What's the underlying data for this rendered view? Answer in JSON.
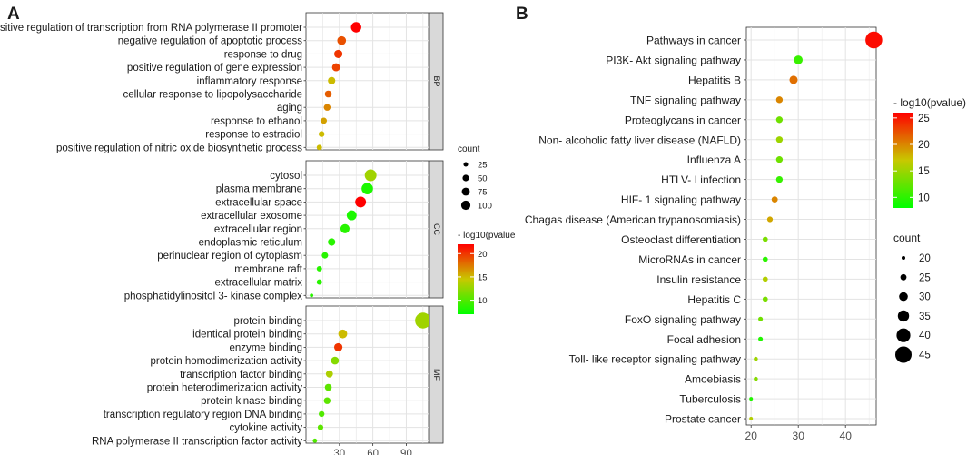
{
  "chart_data": [
    {
      "panel": "A",
      "type": "scatter",
      "subtype": "faceted bubble plot",
      "xlim": [
        0,
        110
      ],
      "xticks": [
        30,
        60,
        90
      ],
      "facets": [
        {
          "name": "BP",
          "terms": [
            {
              "label": "positive regulation of transcription from RNA polymerase II promoter",
              "count": 45,
              "log10p": 22
            },
            {
              "label": "negative regulation of apoptotic process",
              "count": 32,
              "log10p": 19
            },
            {
              "label": "response to drug",
              "count": 29,
              "log10p": 20
            },
            {
              "label": "positive regulation of gene expression",
              "count": 27,
              "log10p": 19.5
            },
            {
              "label": "inflammatory response",
              "count": 23,
              "log10p": 15
            },
            {
              "label": "cellular response to lipopolysaccharide",
              "count": 20,
              "log10p": 18.5
            },
            {
              "label": "aging",
              "count": 19,
              "log10p": 17
            },
            {
              "label": "response to ethanol",
              "count": 16,
              "log10p": 16
            },
            {
              "label": "response to estradiol",
              "count": 14,
              "log10p": 15
            },
            {
              "label": "positive regulation of nitric oxide biosynthetic process",
              "count": 12,
              "log10p": 15
            }
          ]
        },
        {
          "name": "CC",
          "terms": [
            {
              "label": "cytosol",
              "count": 58,
              "log10p": 13
            },
            {
              "label": "plasma membrane",
              "count": 55,
              "log10p": 8
            },
            {
              "label": "extracellular space",
              "count": 49,
              "log10p": 22
            },
            {
              "label": "extracellular exosome",
              "count": 41,
              "log10p": 8
            },
            {
              "label": "extracellular region",
              "count": 35,
              "log10p": 8.5
            },
            {
              "label": "endoplasmic reticulum",
              "count": 23,
              "log10p": 8.5
            },
            {
              "label": "perinuclear region of cytoplasm",
              "count": 17,
              "log10p": 8.5
            },
            {
              "label": "membrane raft",
              "count": 12,
              "log10p": 8.5
            },
            {
              "label": "extracellular matrix",
              "count": 12,
              "log10p": 8.5
            },
            {
              "label": "phosphatidylinositol 3- kinase complex",
              "count": 5,
              "log10p": 8.5
            }
          ]
        },
        {
          "name": "MF",
          "terms": [
            {
              "label": "protein binding",
              "count": 105,
              "log10p": 13
            },
            {
              "label": "identical protein binding",
              "count": 33,
              "log10p": 15
            },
            {
              "label": "enzyme binding",
              "count": 29,
              "log10p": 20
            },
            {
              "label": "protein homodimerization activity",
              "count": 26,
              "log10p": 12
            },
            {
              "label": "transcription factor binding",
              "count": 21,
              "log10p": 13.5
            },
            {
              "label": "protein heterodimerization activity",
              "count": 20,
              "log10p": 10.5
            },
            {
              "label": "protein kinase binding",
              "count": 19,
              "log10p": 10.5
            },
            {
              "label": "transcription regulatory region DNA binding",
              "count": 14,
              "log10p": 10
            },
            {
              "label": "cytokine activity",
              "count": 13,
              "log10p": 10.5
            },
            {
              "label": "RNA polymerase II transcription factor activity",
              "count": 8,
              "log10p": 10
            }
          ]
        }
      ],
      "legend_size": {
        "title": "count",
        "values": [
          25,
          50,
          75,
          100
        ]
      },
      "legend_color": {
        "title": "- log10(pvalue",
        "ticks": [
          10,
          15,
          20
        ],
        "range": [
          7,
          22
        ],
        "low_color": "#00ff00",
        "high_color": "#ff0000"
      }
    },
    {
      "panel": "B",
      "type": "scatter",
      "subtype": "bubble plot",
      "xlim": [
        19,
        46.5
      ],
      "xticks": [
        20,
        30,
        40
      ],
      "terms": [
        {
          "label": "Pathways in cancer",
          "x": 46,
          "count": 46,
          "log10p": 25.5
        },
        {
          "label": "PI3K- Akt signaling pathway",
          "x": 30,
          "count": 30,
          "log10p": 10.5
        },
        {
          "label": "Hepatitis B",
          "x": 29,
          "count": 29,
          "log10p": 21
        },
        {
          "label": "TNF signaling pathway",
          "x": 26,
          "count": 26,
          "log10p": 20
        },
        {
          "label": "Proteoglycans in cancer",
          "x": 26,
          "count": 26,
          "log10p": 13
        },
        {
          "label": "Non- alcoholic fatty liver disease (NAFLD)",
          "x": 26,
          "count": 26,
          "log10p": 15
        },
        {
          "label": "Influenza A",
          "x": 26,
          "count": 26,
          "log10p": 13
        },
        {
          "label": "HTLV- I infection",
          "x": 26,
          "count": 26,
          "log10p": 10.5
        },
        {
          "label": "HIF- 1 signaling pathway",
          "x": 25,
          "count": 25,
          "log10p": 20
        },
        {
          "label": "Chagas disease (American trypanosomiasis)",
          "x": 24,
          "count": 24,
          "log10p": 18.5
        },
        {
          "label": "Osteoclast differentiation",
          "x": 23,
          "count": 23,
          "log10p": 13.5
        },
        {
          "label": "MicroRNAs in cancer",
          "x": 23,
          "count": 23,
          "log10p": 10
        },
        {
          "label": "Insulin resistance",
          "x": 23,
          "count": 23,
          "log10p": 16
        },
        {
          "label": "Hepatitis C",
          "x": 23,
          "count": 23,
          "log10p": 13.5
        },
        {
          "label": "FoxO signaling pathway",
          "x": 22,
          "count": 22,
          "log10p": 13
        },
        {
          "label": "Focal adhesion",
          "x": 22,
          "count": 22,
          "log10p": 9.5
        },
        {
          "label": "Toll- like receptor signaling pathway",
          "x": 21,
          "count": 21,
          "log10p": 15
        },
        {
          "label": "Amoebiasis",
          "x": 21,
          "count": 21,
          "log10p": 14
        },
        {
          "label": "Tuberculosis",
          "x": 20,
          "count": 20,
          "log10p": 9.5
        },
        {
          "label": "Prostate cancer",
          "x": 20,
          "count": 20,
          "log10p": 16
        }
      ],
      "legend_color": {
        "title": "- log10(pvalue)",
        "ticks": [
          10,
          15,
          20,
          25
        ],
        "range": [
          8,
          26
        ],
        "low_color": "#00ff00",
        "high_color": "#ff0000"
      },
      "legend_size": {
        "title": "count",
        "values": [
          20,
          25,
          30,
          35,
          40,
          45
        ]
      }
    }
  ]
}
